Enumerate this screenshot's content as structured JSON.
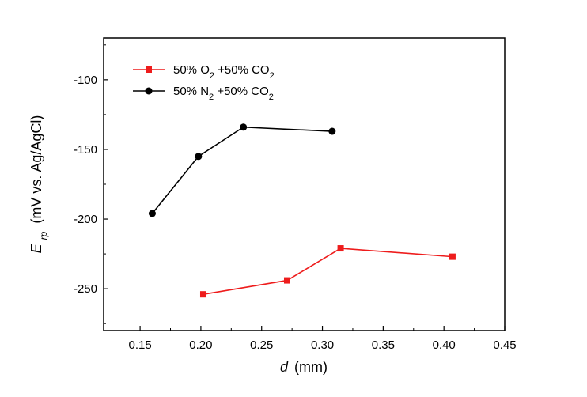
{
  "chart_data": {
    "type": "line",
    "xlabel": {
      "symbol": "d",
      "unit": "(mm)"
    },
    "ylabel": {
      "symbol": "E",
      "subscript": "rp",
      "unit": "(mV vs. Ag/AgCl)"
    },
    "xlim": [
      0.12,
      0.45
    ],
    "ylim": [
      -280,
      -70
    ],
    "xticks": [
      0.15,
      0.2,
      0.25,
      0.3,
      0.35,
      0.4,
      0.45
    ],
    "xtick_labels": [
      "0.15",
      "0.20",
      "0.25",
      "0.30",
      "0.35",
      "0.40",
      "0.45"
    ],
    "yticks": [
      -250,
      -200,
      -150,
      -100
    ],
    "ytick_labels": [
      "-250",
      "-200",
      "-150",
      "-100"
    ],
    "grid": false,
    "legend_position": "top-left",
    "series": [
      {
        "label": {
          "p1": "50% O",
          "s1": "2",
          "p2": " +50% CO",
          "s2": "2"
        },
        "color": "#ee1c1c",
        "marker": "square",
        "x": [
          0.202,
          0.271,
          0.315,
          0.407
        ],
        "y": [
          -254,
          -244,
          -221,
          -227
        ]
      },
      {
        "label": {
          "p1": "50% N",
          "s1": "2",
          "p2": " +50% CO",
          "s2": "2"
        },
        "color": "#000000",
        "marker": "circle",
        "x": [
          0.16,
          0.198,
          0.235,
          0.308
        ],
        "y": [
          -196,
          -155,
          -134,
          -137
        ]
      }
    ]
  }
}
